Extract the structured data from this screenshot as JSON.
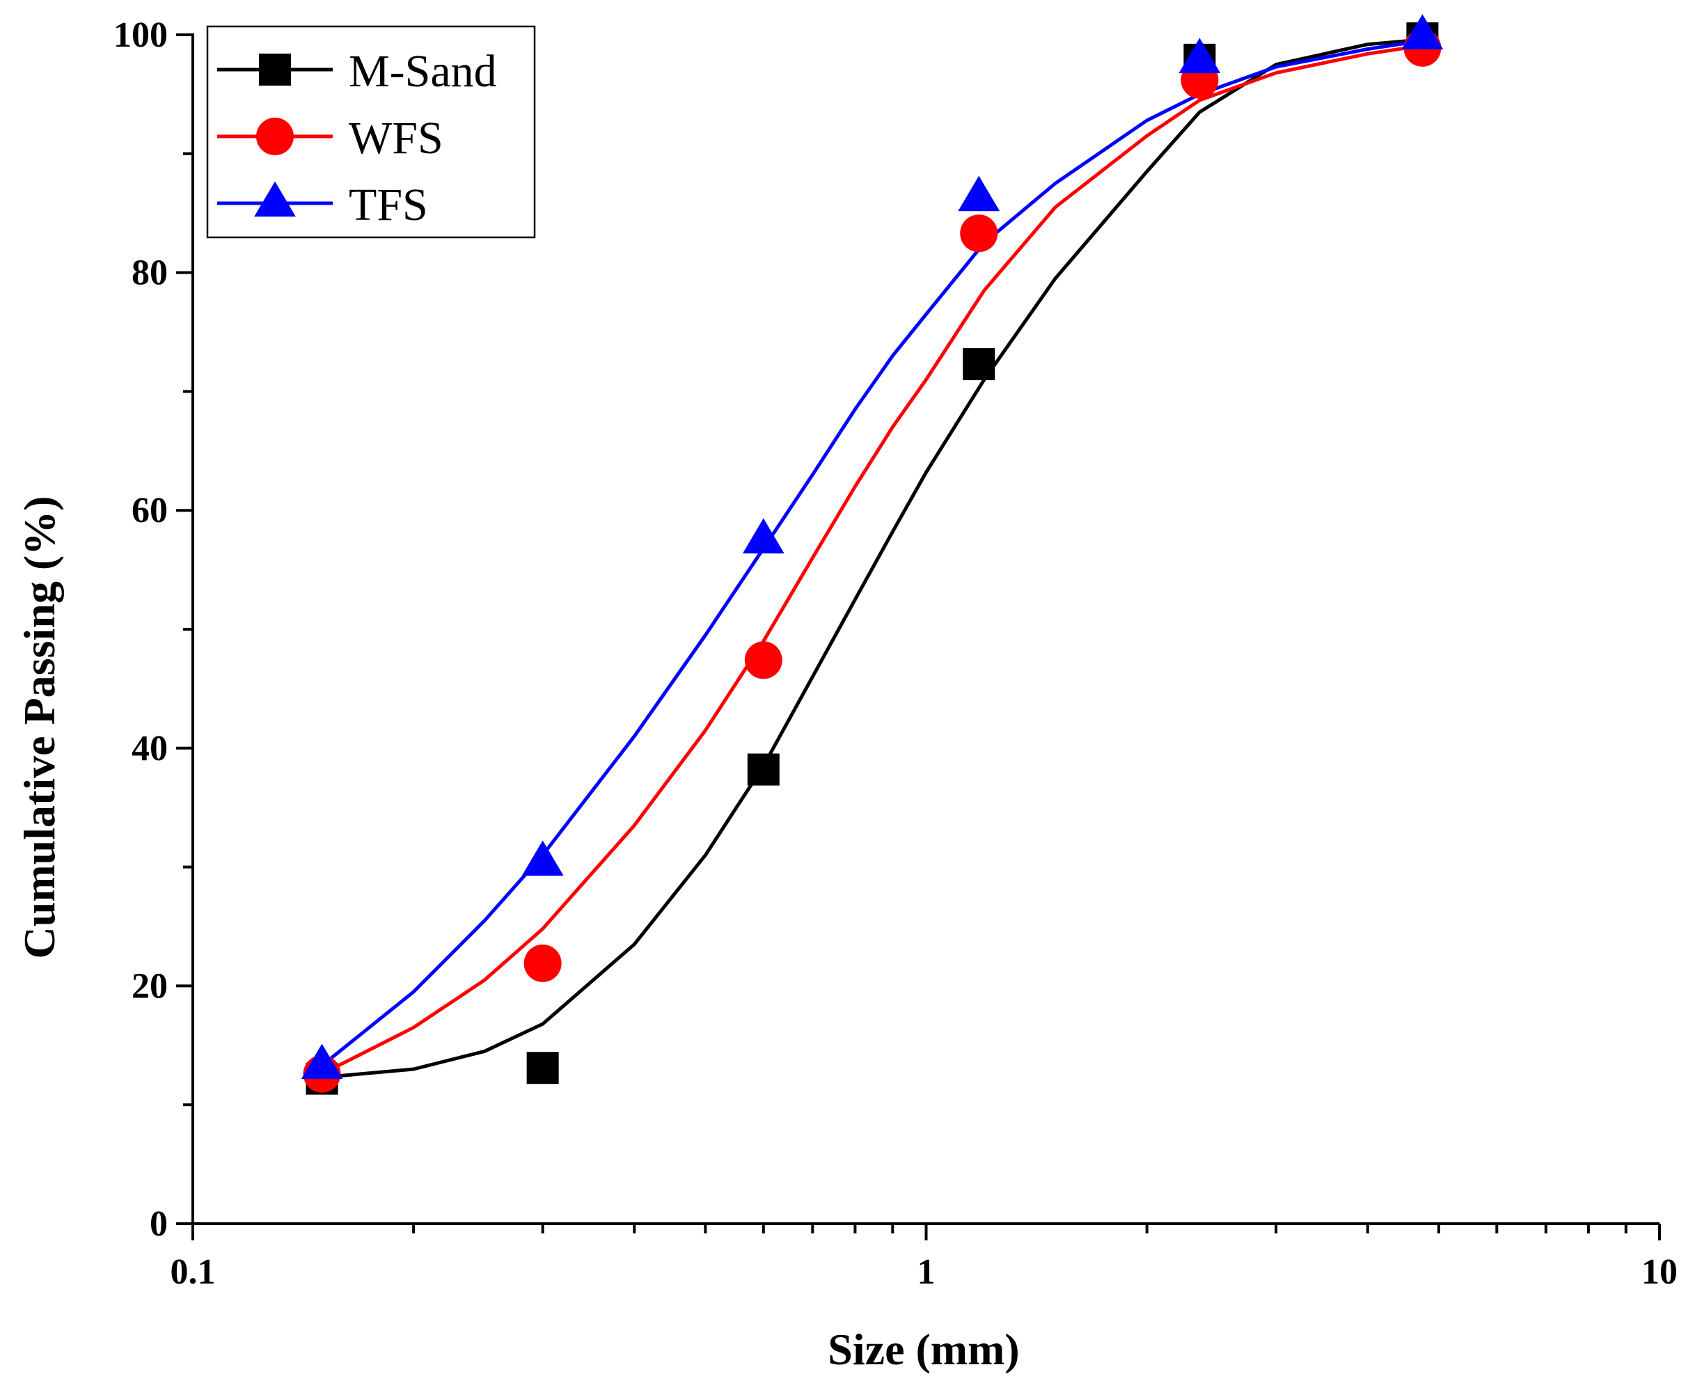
{
  "chart_data": {
    "type": "scatter",
    "xscale": "log",
    "xlabel": "Size (mm)",
    "ylabel": "Cumulative Passing (%)",
    "xlim": [
      0.1,
      10
    ],
    "ylim": [
      0,
      100
    ],
    "xticks": [
      {
        "value": 0.1,
        "label": "0.1"
      },
      {
        "value": 1,
        "label": "1"
      },
      {
        "value": 10,
        "label": "10"
      }
    ],
    "yticks": [
      {
        "value": 0,
        "label": "0"
      },
      {
        "value": 20,
        "label": "20"
      },
      {
        "value": 40,
        "label": "40"
      },
      {
        "value": 60,
        "label": "60"
      },
      {
        "value": 80,
        "label": "80"
      },
      {
        "value": 100,
        "label": "100"
      }
    ],
    "grid": false,
    "legend_position": "top-left",
    "x": [
      0.15,
      0.3,
      0.6,
      1.18,
      2.36,
      4.75
    ],
    "series": [
      {
        "name": "M-Sand",
        "color": "#000000",
        "marker": "square",
        "values": [
          12.2,
          13.1,
          38.2,
          72.3,
          97.9,
          99.7
        ],
        "fit_curve": [
          [
            0.15,
            12.3
          ],
          [
            0.2,
            13.0
          ],
          [
            0.25,
            14.5
          ],
          [
            0.3,
            16.8
          ],
          [
            0.4,
            23.5
          ],
          [
            0.5,
            31.0
          ],
          [
            0.6,
            38.5
          ],
          [
            0.7,
            46.0
          ],
          [
            0.8,
            52.5
          ],
          [
            0.9,
            58.2
          ],
          [
            1.0,
            63.2
          ],
          [
            1.2,
            71.0
          ],
          [
            1.5,
            79.5
          ],
          [
            2.0,
            88.5
          ],
          [
            2.36,
            93.5
          ],
          [
            3.0,
            97.5
          ],
          [
            4.0,
            99.2
          ],
          [
            4.75,
            99.6
          ]
        ]
      },
      {
        "name": "WFS",
        "color": "#ff0000",
        "marker": "circle",
        "values": [
          12.6,
          21.9,
          47.4,
          83.3,
          96.2,
          98.9
        ],
        "fit_curve": [
          [
            0.15,
            12.6
          ],
          [
            0.2,
            16.5
          ],
          [
            0.25,
            20.5
          ],
          [
            0.3,
            24.8
          ],
          [
            0.4,
            33.5
          ],
          [
            0.5,
            41.5
          ],
          [
            0.6,
            49.0
          ],
          [
            0.7,
            56.0
          ],
          [
            0.8,
            62.0
          ],
          [
            0.9,
            67.0
          ],
          [
            1.0,
            71.0
          ],
          [
            1.2,
            78.5
          ],
          [
            1.5,
            85.5
          ],
          [
            2.0,
            91.5
          ],
          [
            2.36,
            94.5
          ],
          [
            3.0,
            96.8
          ],
          [
            4.0,
            98.4
          ],
          [
            4.75,
            99.1
          ]
        ]
      },
      {
        "name": "TFS",
        "color": "#0000ff",
        "marker": "triangle",
        "values": [
          13.3,
          30.4,
          57.5,
          86.3,
          97.9,
          99.9
        ],
        "fit_curve": [
          [
            0.15,
            13.3
          ],
          [
            0.2,
            19.5
          ],
          [
            0.25,
            25.5
          ],
          [
            0.3,
            31.0
          ],
          [
            0.4,
            41.0
          ],
          [
            0.5,
            49.5
          ],
          [
            0.6,
            56.8
          ],
          [
            0.7,
            63.0
          ],
          [
            0.8,
            68.5
          ],
          [
            0.9,
            73.0
          ],
          [
            1.0,
            76.5
          ],
          [
            1.2,
            82.5
          ],
          [
            1.5,
            87.5
          ],
          [
            2.0,
            92.8
          ],
          [
            2.36,
            95.0
          ],
          [
            3.0,
            97.3
          ],
          [
            4.0,
            98.8
          ],
          [
            4.75,
            99.5
          ]
        ]
      }
    ]
  }
}
